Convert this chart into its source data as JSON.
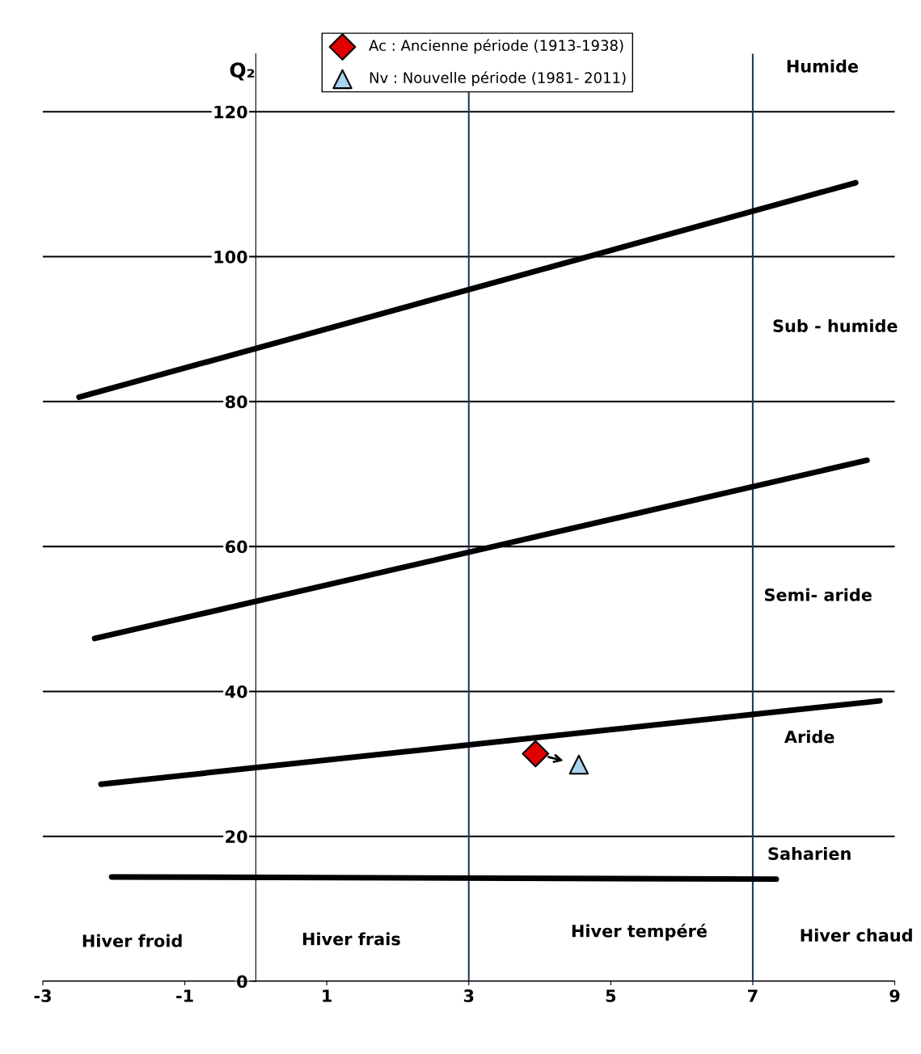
{
  "chart_data": {
    "type": "line",
    "ylabel": "Q₂",
    "xlim": [
      -3,
      9
    ],
    "ylim": [
      0,
      128
    ],
    "xticks": [
      -3,
      -1,
      1,
      3,
      5,
      7,
      9
    ],
    "yticks": [
      0,
      20,
      40,
      60,
      80,
      100,
      120
    ],
    "grid": "y",
    "legend": "top",
    "series": [
      {
        "color": "#000000",
        "x": [
          -2.49,
          8.45
        ],
        "values": [
          80.6,
          110.2
        ]
      },
      {
        "color": "#000000",
        "x": [
          -2.27,
          8.61
        ],
        "values": [
          47.3,
          71.9
        ]
      },
      {
        "color": "#000000",
        "x": [
          -2.18,
          8.79
        ],
        "values": [
          27.2,
          38.7
        ]
      },
      {
        "color": "#000000",
        "x": [
          -2.03,
          7.33
        ],
        "values": [
          14.4,
          14.1
        ]
      },
      {
        "type": "scatter",
        "name": "Ac : Ancienne période (1913-1938)",
        "color": "#e00000",
        "marker": "diamond",
        "x": [
          3.94
        ],
        "values": [
          31.4
        ]
      },
      {
        "type": "scatter",
        "name": "Nv : Nouvelle période (1981- 2011)",
        "color": "#a8d4f0",
        "marker": "triangle",
        "x": [
          4.55
        ],
        "values": [
          29.9
        ]
      }
    ],
    "ref_lines": [
      {
        "axis": "x",
        "value": 3,
        "color": "#1f3a5f"
      },
      {
        "axis": "x",
        "value": 7,
        "color": "#1f3a5f"
      }
    ],
    "annotations": [
      "Humide",
      "Sub - humide",
      "Semi- aride",
      "Aride",
      "Saharien",
      "Hiver froid",
      "Hiver frais",
      "Hiver tempéré",
      "Hiver chaud"
    ]
  }
}
